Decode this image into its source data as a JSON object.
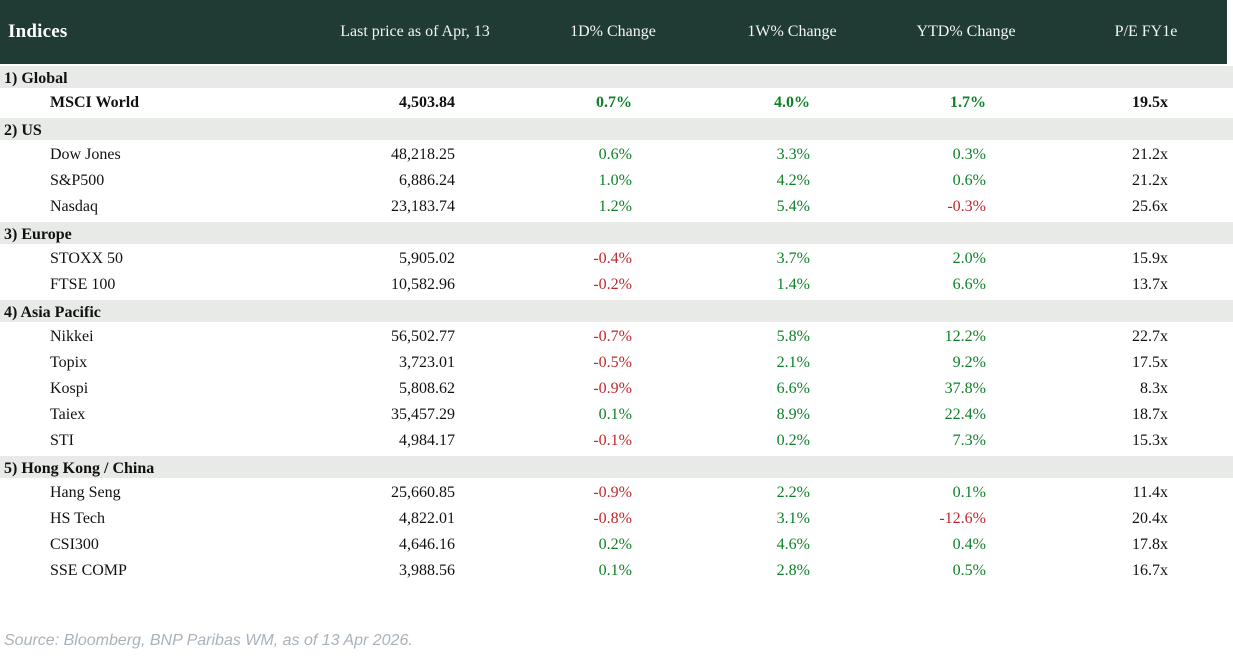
{
  "chart_data": {
    "type": "table",
    "title": "Indices",
    "columns": [
      "Indices",
      "Last price as of Apr, 13",
      "1D% Change",
      "1W% Change",
      "YTD% Change",
      "P/E FY1e"
    ],
    "sections": [
      {
        "label": "1) Global",
        "rows": [
          {
            "name": "MSCI World",
            "price": "4,503.84",
            "d1": "0.7%",
            "w1": "4.0%",
            "ytd": "1.7%",
            "pe": "19.5x",
            "bold": true
          }
        ]
      },
      {
        "label": "2) US",
        "rows": [
          {
            "name": "Dow Jones",
            "price": "48,218.25",
            "d1": "0.6%",
            "w1": "3.3%",
            "ytd": "0.3%",
            "pe": "21.2x"
          },
          {
            "name": "S&P500",
            "price": "6,886.24",
            "d1": "1.0%",
            "w1": "4.2%",
            "ytd": "0.6%",
            "pe": "21.2x"
          },
          {
            "name": "Nasdaq",
            "price": "23,183.74",
            "d1": "1.2%",
            "w1": "5.4%",
            "ytd": "-0.3%",
            "pe": "25.6x"
          }
        ]
      },
      {
        "label": "3) Europe",
        "rows": [
          {
            "name": "STOXX 50",
            "price": "5,905.02",
            "d1": "-0.4%",
            "w1": "3.7%",
            "ytd": "2.0%",
            "pe": "15.9x"
          },
          {
            "name": "FTSE 100",
            "price": "10,582.96",
            "d1": "-0.2%",
            "w1": "1.4%",
            "ytd": "6.6%",
            "pe": "13.7x"
          }
        ]
      },
      {
        "label": "4) Asia Pacific",
        "rows": [
          {
            "name": "Nikkei",
            "price": "56,502.77",
            "d1": "-0.7%",
            "w1": "5.8%",
            "ytd": "12.2%",
            "pe": "22.7x"
          },
          {
            "name": "Topix",
            "price": "3,723.01",
            "d1": "-0.5%",
            "w1": "2.1%",
            "ytd": "9.2%",
            "pe": "17.5x"
          },
          {
            "name": "Kospi",
            "price": "5,808.62",
            "d1": "-0.9%",
            "w1": "6.6%",
            "ytd": "37.8%",
            "pe": "8.3x"
          },
          {
            "name": "Taiex",
            "price": "35,457.29",
            "d1": "0.1%",
            "w1": "8.9%",
            "ytd": "22.4%",
            "pe": "18.7x"
          },
          {
            "name": "STI",
            "price": "4,984.17",
            "d1": "-0.1%",
            "w1": "0.2%",
            "ytd": "7.3%",
            "pe": "15.3x"
          }
        ]
      },
      {
        "label": "5) Hong Kong / China",
        "rows": [
          {
            "name": "Hang Seng",
            "price": "25,660.85",
            "d1": "-0.9%",
            "w1": "2.2%",
            "ytd": "0.1%",
            "pe": "11.4x"
          },
          {
            "name": "HS Tech",
            "price": "4,822.01",
            "d1": "-0.8%",
            "w1": "3.1%",
            "ytd": "-12.6%",
            "pe": "20.4x"
          },
          {
            "name": "CSI300",
            "price": "4,646.16",
            "d1": "0.2%",
            "w1": "4.6%",
            "ytd": "0.4%",
            "pe": "17.8x"
          },
          {
            "name": "SSE COMP",
            "price": "3,988.56",
            "d1": "0.1%",
            "w1": "2.8%",
            "ytd": "0.5%",
            "pe": "16.7x"
          }
        ]
      }
    ]
  },
  "footer": {
    "source": "Source: Bloomberg, BNP Paribas WM, as of 13 Apr 2026."
  },
  "colors": {
    "header_bg": "#203b34",
    "header_text": "#f3f5f2",
    "section_row_bg": "#e7eae6",
    "positive_change": "#0e8128",
    "negative_change": "#c2262c",
    "footer_text": "#a9b2ba"
  }
}
